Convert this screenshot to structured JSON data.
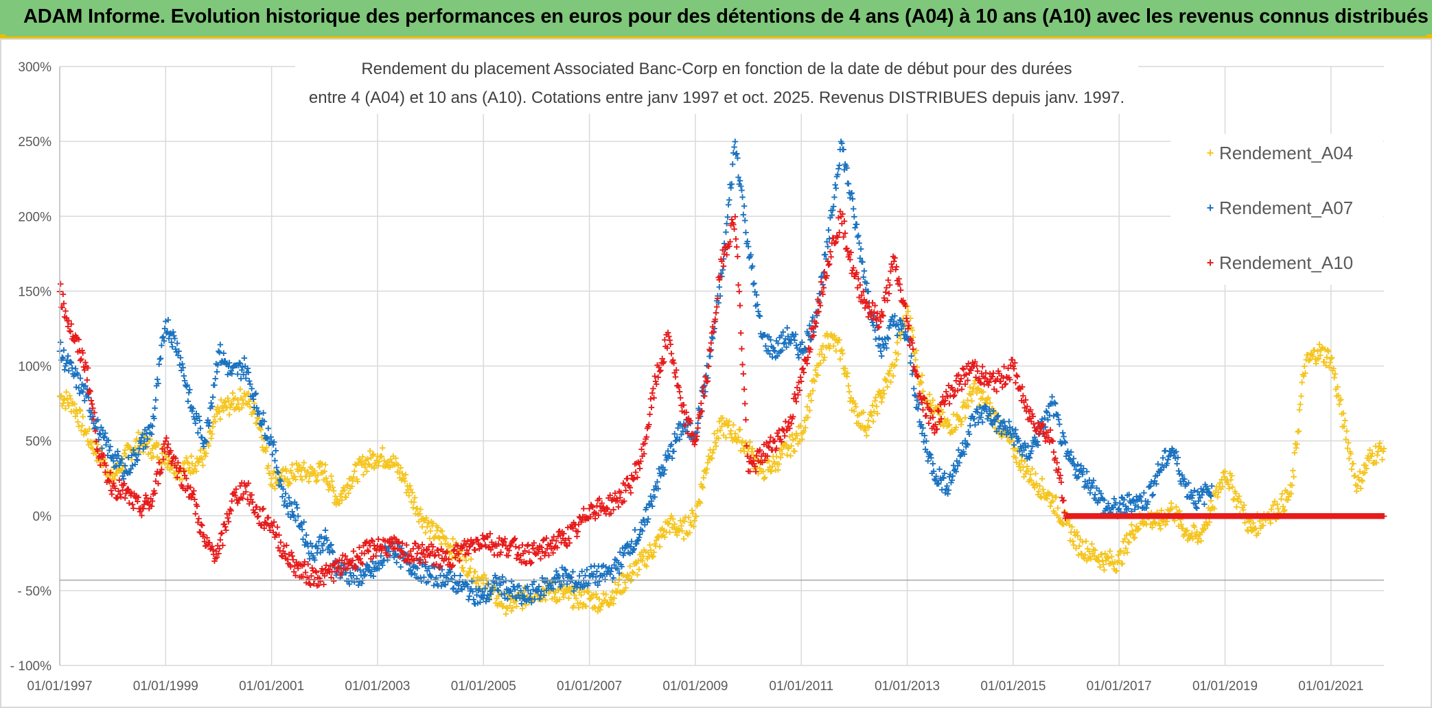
{
  "header": {
    "title": "ADAM Informe. Evolution historique des performances en euros pour des détentions de 4 ans (A04) à 10 ans (A10) avec les revenus connus distribués"
  },
  "chart_data": {
    "type": "scatter",
    "title_line1": "Rendement du placement Associated Banc-Corp en fonction de la date de début pour des durées",
    "title_line2": "entre 4 (A04) et 10 ans (A10). Cotations entre janv 1997 et oct. 2025. Revenus DISTRIBUES depuis janv. 1997.",
    "xlabel": "",
    "ylabel": "",
    "xlim": [
      1997.0,
      2022.0
    ],
    "ylim": [
      -100,
      300
    ],
    "y_ticks": [
      300,
      250,
      200,
      150,
      100,
      50,
      0,
      -50,
      -100
    ],
    "y_tick_labels": [
      "300%",
      "250%",
      "200%",
      "150%",
      "100%",
      "50%",
      "0%",
      "- 50%",
      "- 100%"
    ],
    "x_ticks": [
      1997,
      1999,
      2001,
      2003,
      2005,
      2007,
      2009,
      2011,
      2013,
      2015,
      2017,
      2019,
      2021
    ],
    "x_tick_labels": [
      "01/01/1997",
      "01/01/1999",
      "01/01/2001",
      "01/01/2003",
      "01/01/2005",
      "01/01/2007",
      "01/01/2009",
      "01/01/2011",
      "01/01/2013",
      "01/01/2015",
      "01/01/2017",
      "01/01/2019",
      "01/01/2021"
    ],
    "legend_position": "top-right",
    "series": [
      {
        "name": "Rendement_A04",
        "color": "#f5c51f",
        "x": [
          1997.0,
          1997.25,
          1997.5,
          1997.75,
          1998.0,
          1998.25,
          1998.5,
          1998.75,
          1999.0,
          1999.25,
          1999.5,
          1999.75,
          2000.0,
          2000.25,
          2000.5,
          2000.75,
          2001.0,
          2001.25,
          2001.5,
          2001.75,
          2002.0,
          2002.25,
          2002.5,
          2002.75,
          2003.0,
          2003.25,
          2003.5,
          2003.75,
          2004.0,
          2004.25,
          2004.5,
          2004.75,
          2005.0,
          2005.25,
          2005.5,
          2005.75,
          2006.0,
          2006.25,
          2006.5,
          2006.75,
          2007.0,
          2007.25,
          2007.5,
          2007.75,
          2008.0,
          2008.25,
          2008.5,
          2008.75,
          2009.0,
          2009.25,
          2009.5,
          2009.75,
          2010.0,
          2010.25,
          2010.5,
          2010.75,
          2011.0,
          2011.25,
          2011.5,
          2011.75,
          2012.0,
          2012.25,
          2012.5,
          2012.75,
          2013.0,
          2013.25,
          2013.5,
          2013.75,
          2014.0,
          2014.25,
          2014.5,
          2014.75,
          2015.0,
          2015.25,
          2015.5,
          2015.75,
          2016.0,
          2016.25,
          2016.5,
          2016.75,
          2017.0,
          2017.25,
          2017.5,
          2017.75,
          2018.0,
          2018.25,
          2018.5,
          2018.75,
          2019.0,
          2019.25,
          2019.5,
          2019.75,
          2020.0,
          2020.25,
          2020.5,
          2020.75,
          2021.0,
          2021.25,
          2021.5,
          2021.75,
          2022.0
        ],
        "values": [
          80,
          75,
          55,
          40,
          25,
          40,
          50,
          45,
          40,
          30,
          35,
          40,
          70,
          75,
          80,
          65,
          25,
          25,
          30,
          28,
          30,
          10,
          25,
          35,
          40,
          38,
          25,
          5,
          -10,
          -15,
          -25,
          -35,
          -45,
          -55,
          -60,
          -55,
          -50,
          -50,
          -52,
          -55,
          -55,
          -58,
          -50,
          -40,
          -30,
          -20,
          -5,
          -10,
          0,
          40,
          60,
          55,
          45,
          30,
          35,
          45,
          55,
          90,
          120,
          110,
          70,
          60,
          80,
          100,
          140,
          90,
          70,
          60,
          65,
          85,
          75,
          60,
          45,
          30,
          20,
          10,
          -5,
          -20,
          -25,
          -30,
          -30,
          -10,
          0,
          -5,
          5,
          -10,
          -15,
          5,
          30,
          10,
          -10,
          0,
          5,
          15,
          100,
          110,
          105,
          60,
          20,
          40,
          45
        ]
      },
      {
        "name": "Rendement_A07",
        "color": "#1a72c0",
        "x": [
          1997.0,
          1997.25,
          1997.5,
          1997.75,
          1998.0,
          1998.25,
          1998.5,
          1998.75,
          1999.0,
          1999.25,
          1999.5,
          1999.75,
          2000.0,
          2000.25,
          2000.5,
          2000.75,
          2001.0,
          2001.25,
          2001.5,
          2001.75,
          2002.0,
          2002.25,
          2002.5,
          2002.75,
          2003.0,
          2003.25,
          2003.5,
          2003.75,
          2004.0,
          2004.25,
          2004.5,
          2004.75,
          2005.0,
          2005.25,
          2005.5,
          2005.75,
          2006.0,
          2006.25,
          2006.5,
          2006.75,
          2007.0,
          2007.25,
          2007.5,
          2007.75,
          2008.0,
          2008.25,
          2008.5,
          2008.75,
          2009.0,
          2009.25,
          2009.5,
          2009.75,
          2010.0,
          2010.25,
          2010.5,
          2010.75,
          2011.0,
          2011.25,
          2011.5,
          2011.75,
          2012.0,
          2012.25,
          2012.5,
          2012.75,
          2013.0,
          2013.25,
          2013.5,
          2013.75,
          2014.0,
          2014.25,
          2014.5,
          2014.75,
          2015.0,
          2015.25,
          2015.5,
          2015.75,
          2016.0,
          2016.25,
          2016.5,
          2016.75,
          2017.0,
          2017.25,
          2017.5,
          2017.75,
          2018.0,
          2018.25,
          2018.5,
          2018.75
        ],
        "values": [
          110,
          95,
          80,
          55,
          40,
          30,
          45,
          60,
          130,
          110,
          70,
          50,
          110,
          95,
          100,
          70,
          50,
          10,
          0,
          -25,
          -15,
          -35,
          -40,
          -40,
          -35,
          -20,
          -30,
          -35,
          -40,
          -40,
          -45,
          -50,
          -55,
          -45,
          -50,
          -55,
          -50,
          -45,
          -40,
          -45,
          -40,
          -40,
          -35,
          -20,
          -10,
          20,
          40,
          60,
          55,
          100,
          160,
          250,
          180,
          120,
          110,
          120,
          110,
          130,
          180,
          250,
          200,
          150,
          110,
          130,
          120,
          60,
          30,
          20,
          40,
          65,
          70,
          60,
          55,
          40,
          55,
          75,
          40,
          30,
          20,
          5,
          5,
          10,
          10,
          30,
          45,
          20,
          10,
          20
        ]
      },
      {
        "name": "Rendement_A10",
        "color": "#e81a1a",
        "x": [
          1997.0,
          1997.25,
          1997.5,
          1997.75,
          1998.0,
          1998.25,
          1998.5,
          1998.75,
          1999.0,
          1999.25,
          1999.5,
          1999.75,
          2000.0,
          2000.25,
          2000.5,
          2000.75,
          2001.0,
          2001.25,
          2001.5,
          2001.75,
          2002.0,
          2002.25,
          2002.5,
          2002.75,
          2003.0,
          2003.25,
          2003.5,
          2003.75,
          2004.0,
          2004.25,
          2004.5,
          2004.75,
          2005.0,
          2005.25,
          2005.5,
          2005.75,
          2006.0,
          2006.25,
          2006.5,
          2006.75,
          2007.0,
          2007.25,
          2007.5,
          2007.75,
          2008.0,
          2008.25,
          2008.5,
          2008.75,
          2009.0,
          2009.25,
          2009.5,
          2009.75,
          2010.0,
          2010.25,
          2010.5,
          2010.75,
          2011.0,
          2011.25,
          2011.5,
          2011.75,
          2012.0,
          2012.25,
          2012.5,
          2012.75,
          2013.0,
          2013.25,
          2013.5,
          2013.75,
          2014.0,
          2014.25,
          2014.5,
          2014.75,
          2015.0,
          2015.25,
          2015.5,
          2015.75,
          2016.0,
          2016.25,
          2016.5,
          2016.75,
          2017.0,
          2017.25,
          2017.5,
          2017.75,
          2018.0,
          2018.25,
          2018.5,
          2018.75,
          2019.0,
          2019.25,
          2019.5,
          2019.75,
          2020.0,
          2020.25,
          2020.5,
          2020.75,
          2021.0,
          2021.25,
          2021.5,
          2021.75,
          2022.0
        ],
        "values": [
          150,
          120,
          100,
          40,
          20,
          15,
          5,
          10,
          50,
          30,
          15,
          -20,
          -25,
          10,
          20,
          0,
          -5,
          -25,
          -35,
          -40,
          -40,
          -35,
          -30,
          -25,
          -20,
          -20,
          -25,
          -25,
          -25,
          -30,
          -25,
          -20,
          -15,
          -20,
          -20,
          -25,
          -25,
          -20,
          -15,
          -10,
          5,
          5,
          10,
          20,
          40,
          90,
          120,
          70,
          50,
          100,
          170,
          200,
          30,
          40,
          50,
          60,
          90,
          130,
          170,
          200,
          160,
          140,
          130,
          170,
          130,
          80,
          60,
          80,
          90,
          100,
          90,
          90,
          100,
          70,
          60,
          50,
          0,
          0,
          0,
          0,
          0,
          0,
          0,
          0,
          0,
          0,
          0,
          0,
          0,
          0,
          0,
          0,
          0,
          0,
          0,
          0,
          0,
          0,
          0,
          0,
          0
        ]
      }
    ]
  }
}
